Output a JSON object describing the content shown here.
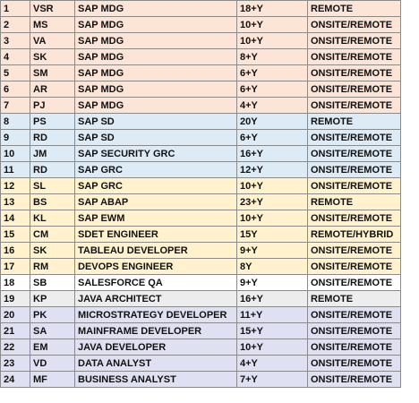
{
  "colors": {
    "salmon": "#fce4d6",
    "blue": "#ddebf7",
    "yellow": "#fff2cc",
    "lavender": "#dfe1f3",
    "gray": "#ededed",
    "white": "#ffffff"
  },
  "rows": [
    {
      "num": "1",
      "code": "VSR",
      "role": "SAP MDG",
      "exp": "18+Y",
      "mode": "REMOTE",
      "color": "salmon"
    },
    {
      "num": "2",
      "code": "MS",
      "role": "SAP MDG",
      "exp": "10+Y",
      "mode": "ONSITE/REMOTE",
      "color": "salmon"
    },
    {
      "num": "3",
      "code": "VA",
      "role": "SAP MDG",
      "exp": "10+Y",
      "mode": "ONSITE/REMOTE",
      "color": "salmon"
    },
    {
      "num": "4",
      "code": "SK",
      "role": "SAP MDG",
      "exp": "8+Y",
      "mode": "ONSITE/REMOTE",
      "color": "salmon"
    },
    {
      "num": "5",
      "code": "SM",
      "role": "SAP MDG",
      "exp": "6+Y",
      "mode": "ONSITE/REMOTE",
      "color": "salmon"
    },
    {
      "num": "6",
      "code": "AR",
      "role": "SAP MDG",
      "exp": "6+Y",
      "mode": "ONSITE/REMOTE",
      "color": "salmon"
    },
    {
      "num": "7",
      "code": "PJ",
      "role": "SAP MDG",
      "exp": "4+Y",
      "mode": "ONSITE/REMOTE",
      "color": "salmon"
    },
    {
      "num": "8",
      "code": "PS",
      "role": "SAP SD",
      "exp": "20Y",
      "mode": "REMOTE",
      "color": "blue"
    },
    {
      "num": "9",
      "code": "RD",
      "role": "SAP SD",
      "exp": "6+Y",
      "mode": "ONSITE/REMOTE",
      "color": "blue"
    },
    {
      "num": "10",
      "code": "JM",
      "role": "SAP SECURITY GRC",
      "exp": "16+Y",
      "mode": "ONSITE/REMOTE",
      "color": "blue"
    },
    {
      "num": "11",
      "code": "RD",
      "role": "SAP GRC",
      "exp": "12+Y",
      "mode": "ONSITE/REMOTE",
      "color": "blue"
    },
    {
      "num": "12",
      "code": "SL",
      "role": "SAP GRC",
      "exp": "10+Y",
      "mode": "ONSITE/REMOTE",
      "color": "yellow"
    },
    {
      "num": "13",
      "code": "BS",
      "role": "SAP ABAP",
      "exp": "23+Y",
      "mode": "REMOTE",
      "color": "yellow"
    },
    {
      "num": "14",
      "code": "KL",
      "role": "SAP EWM",
      "exp": "10+Y",
      "mode": "ONSITE/REMOTE",
      "color": "yellow"
    },
    {
      "num": "15",
      "code": "CM",
      "role": "SDET ENGINEER",
      "exp": "15Y",
      "mode": "REMOTE/HYBRID",
      "color": "yellow"
    },
    {
      "num": "16",
      "code": "SK",
      "role": "TABLEAU DEVELOPER",
      "exp": "9+Y",
      "mode": "ONSITE/REMOTE",
      "color": "yellow"
    },
    {
      "num": "17",
      "code": "RM",
      "role": "DEVOPS ENGINEER",
      "exp": "8Y",
      "mode": "ONSITE/REMOTE",
      "color": "yellow"
    },
    {
      "num": "18",
      "code": "SB",
      "role": "SALESFORCE QA",
      "exp": "9+Y",
      "mode": "ONSITE/REMOTE",
      "color": "white"
    },
    {
      "num": "19",
      "code": "KP",
      "role": "JAVA  ARCHITECT",
      "exp": "16+Y",
      "mode": "REMOTE",
      "color": "gray"
    },
    {
      "num": "20",
      "code": "PK",
      "role": "MICROSTRATEGY DEVELOPER",
      "exp": "11+Y",
      "mode": "ONSITE/REMOTE",
      "color": "lavender"
    },
    {
      "num": "21",
      "code": "SA",
      "role": "MAINFRAME DEVELOPER",
      "exp": "15+Y",
      "mode": "ONSITE/REMOTE",
      "color": "lavender"
    },
    {
      "num": "22",
      "code": "EM",
      "role": "JAVA DEVELOPER",
      "exp": "10+Y",
      "mode": "ONSITE/REMOTE",
      "color": "lavender"
    },
    {
      "num": "23",
      "code": "VD",
      "role": "DATA ANALYST",
      "exp": "4+Y",
      "mode": "ONSITE/REMOTE",
      "color": "lavender"
    },
    {
      "num": "24",
      "code": "MF",
      "role": "BUSINESS ANALYST",
      "exp": "7+Y",
      "mode": "ONSITE/REMOTE",
      "color": "lavender"
    }
  ]
}
